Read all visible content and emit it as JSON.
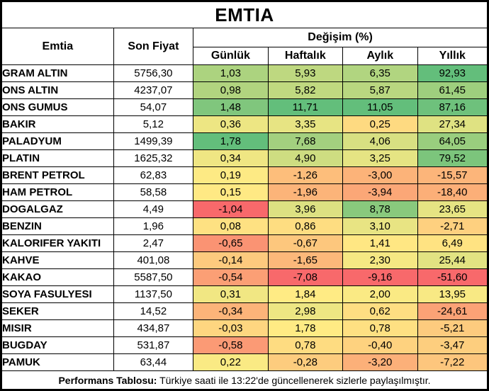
{
  "title": "EMTIA",
  "columns": {
    "emtia": "Emtia",
    "son_fiyat": "Son Fiyat",
    "degisim": "Değişim (%)",
    "sub": [
      "Günlük",
      "Haftalık",
      "Aylık",
      "Yıllık"
    ]
  },
  "rows": [
    {
      "name": "GRAM ALTIN",
      "price": "5756,30",
      "changes": [
        "1,03",
        "5,93",
        "6,35",
        "92,93"
      ]
    },
    {
      "name": "ONS ALTIN",
      "price": "4237,07",
      "changes": [
        "0,98",
        "5,82",
        "5,87",
        "61,45"
      ]
    },
    {
      "name": "ONS GUMUS",
      "price": "54,07",
      "changes": [
        "1,48",
        "11,71",
        "11,05",
        "87,16"
      ]
    },
    {
      "name": "BAKIR",
      "price": "5,12",
      "changes": [
        "0,36",
        "3,35",
        "0,25",
        "27,34"
      ]
    },
    {
      "name": "PALADYUM",
      "price": "1499,39",
      "changes": [
        "1,78",
        "7,68",
        "4,06",
        "64,05"
      ]
    },
    {
      "name": "PLATIN",
      "price": "1625,32",
      "changes": [
        "0,34",
        "4,90",
        "3,25",
        "79,52"
      ]
    },
    {
      "name": "BRENT PETROL",
      "price": "62,83",
      "changes": [
        "0,19",
        "-1,26",
        "-3,00",
        "-15,57"
      ]
    },
    {
      "name": "HAM PETROL",
      "price": "58,58",
      "changes": [
        "0,15",
        "-1,96",
        "-3,94",
        "-18,40"
      ]
    },
    {
      "name": "DOGALGAZ",
      "price": "4,49",
      "changes": [
        "-1,04",
        "3,96",
        "8,78",
        "23,65"
      ]
    },
    {
      "name": "BENZIN",
      "price": "1,96",
      "changes": [
        "0,08",
        "0,86",
        "3,10",
        "-2,71"
      ]
    },
    {
      "name": "KALORIFER YAKITI",
      "price": "2,47",
      "changes": [
        "-0,65",
        "-0,67",
        "1,41",
        "6,49"
      ]
    },
    {
      "name": "KAHVE",
      "price": "401,08",
      "changes": [
        "-0,14",
        "-1,65",
        "2,30",
        "25,44"
      ]
    },
    {
      "name": "KAKAO",
      "price": "5587,50",
      "changes": [
        "-0,54",
        "-7,08",
        "-9,16",
        "-51,60"
      ]
    },
    {
      "name": "SOYA FASULYESI",
      "price": "1137,50",
      "changes": [
        "0,31",
        "1,84",
        "2,00",
        "13,95"
      ]
    },
    {
      "name": "SEKER",
      "price": "14,52",
      "changes": [
        "-0,34",
        "2,98",
        "0,62",
        "-24,61"
      ]
    },
    {
      "name": "MISIR",
      "price": "434,87",
      "changes": [
        "-0,03",
        "1,78",
        "0,78",
        "-5,21"
      ]
    },
    {
      "name": "BUGDAY",
      "price": "531,87",
      "changes": [
        "-0,58",
        "0,78",
        "-0,40",
        "-3,47"
      ]
    },
    {
      "name": "PAMUK",
      "price": "63,44",
      "changes": [
        "0,22",
        "-0,28",
        "-3,20",
        "-7,22"
      ]
    }
  ],
  "footer": {
    "label": "Performans Tablosu:",
    "text": " Türkiye saati ile 13:22'de güncellenerek sizlerle paylaşılmıştır."
  },
  "color_scale": {
    "min": "#F8696B",
    "mid": "#FFEB84",
    "max": "#63BE7B"
  },
  "chart_data": {
    "type": "table",
    "title": "EMTIA",
    "columns": [
      "Emtia",
      "Son Fiyat",
      "Günlük",
      "Haftalık",
      "Aylık",
      "Yıllık"
    ],
    "change_unit": "Değişim (%)",
    "rows": [
      [
        "GRAM ALTIN",
        5756.3,
        1.03,
        5.93,
        6.35,
        92.93
      ],
      [
        "ONS ALTIN",
        4237.07,
        0.98,
        5.82,
        5.87,
        61.45
      ],
      [
        "ONS GUMUS",
        54.07,
        1.48,
        11.71,
        11.05,
        87.16
      ],
      [
        "BAKIR",
        5.12,
        0.36,
        3.35,
        0.25,
        27.34
      ],
      [
        "PALADYUM",
        1499.39,
        1.78,
        7.68,
        4.06,
        64.05
      ],
      [
        "PLATIN",
        1625.32,
        0.34,
        4.9,
        3.25,
        79.52
      ],
      [
        "BRENT PETROL",
        62.83,
        0.19,
        -1.26,
        -3.0,
        -15.57
      ],
      [
        "HAM PETROL",
        58.58,
        0.15,
        -1.96,
        -3.94,
        -18.4
      ],
      [
        "DOGALGAZ",
        4.49,
        -1.04,
        3.96,
        8.78,
        23.65
      ],
      [
        "BENZIN",
        1.96,
        0.08,
        0.86,
        3.1,
        -2.71
      ],
      [
        "KALORIFER YAKITI",
        2.47,
        -0.65,
        -0.67,
        1.41,
        6.49
      ],
      [
        "KAHVE",
        401.08,
        -0.14,
        -1.65,
        2.3,
        25.44
      ],
      [
        "KAKAO",
        5587.5,
        -0.54,
        -7.08,
        -9.16,
        -51.6
      ],
      [
        "SOYA FASULYESI",
        1137.5,
        0.31,
        1.84,
        2.0,
        13.95
      ],
      [
        "SEKER",
        14.52,
        -0.34,
        2.98,
        0.62,
        -24.61
      ],
      [
        "MISIR",
        434.87,
        -0.03,
        1.78,
        0.78,
        -5.21
      ],
      [
        "BUGDAY",
        531.87,
        -0.58,
        0.78,
        -0.4,
        -3.47
      ],
      [
        "PAMUK",
        63.44,
        0.22,
        -0.28,
        -3.2,
        -7.22
      ]
    ],
    "conditional_formatting": "3-color scale per change column: red #F8696B (min) / yellow #FFEB84 (median) / green #63BE7B (max)"
  }
}
